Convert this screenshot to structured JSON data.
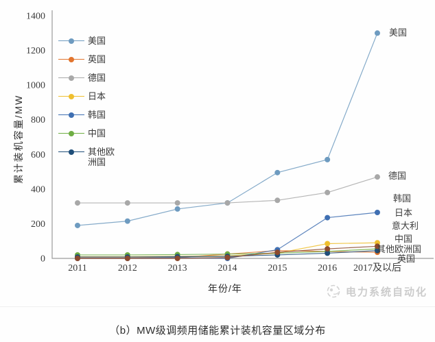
{
  "caption": "（b）MW级调频用储能累计装机容量区域分布",
  "watermark": {
    "text": "电力系统自动化",
    "logo": "swirl-circle-icon"
  },
  "chart_data": {
    "type": "line",
    "title": "",
    "xlabel": "年份/年",
    "ylabel": "累计装机容量/MW",
    "categories": [
      "2011",
      "2012",
      "2013",
      "2014",
      "2015",
      "2016",
      "2017及以后"
    ],
    "ylim": [
      0,
      1400
    ],
    "ytick_interval": 200,
    "grid": false,
    "legend_position": "inside-upper-left",
    "series": [
      {
        "name": "美国",
        "color": "#6E9BC0",
        "values": [
          190,
          215,
          285,
          320,
          495,
          570,
          1300
        ],
        "end_label": "美国"
      },
      {
        "name": "英国",
        "color": "#E2752E",
        "values": [
          2,
          2,
          5,
          25,
          45,
          40,
          35
        ],
        "end_label": "英国"
      },
      {
        "name": "德国",
        "color": "#A8A8A8",
        "values": [
          320,
          320,
          320,
          320,
          335,
          380,
          470
        ],
        "end_label": "德国"
      },
      {
        "name": "日本",
        "color": "#EFBF2F",
        "values": [
          10,
          10,
          12,
          15,
          30,
          85,
          90
        ],
        "end_label": "日本"
      },
      {
        "name": "韩国",
        "color": "#3F6FB2",
        "values": [
          0,
          0,
          5,
          0,
          50,
          235,
          265
        ],
        "end_label": "韩国"
      },
      {
        "name": "中国",
        "color": "#6FAE44",
        "values": [
          20,
          20,
          22,
          25,
          30,
          40,
          55
        ],
        "end_label": "中国"
      },
      {
        "name": "其他欧洲国",
        "color": "#1F4E79",
        "values": [
          8,
          8,
          10,
          12,
          20,
          30,
          45
        ],
        "legend_label": "其他欧\n洲国",
        "end_label": "其他欧洲国"
      },
      {
        "name": "意大利",
        "color": "#8C4A2E",
        "values": [
          0,
          0,
          0,
          5,
          35,
          55,
          70
        ],
        "in_legend": false,
        "end_label": "意大利"
      }
    ]
  }
}
